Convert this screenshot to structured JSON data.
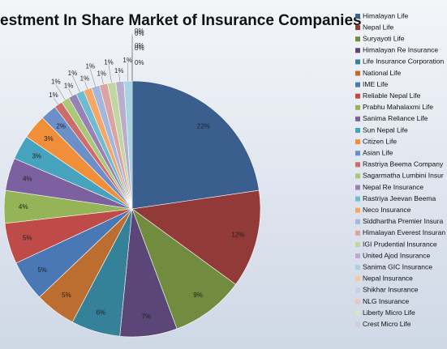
{
  "chart_data": {
    "type": "pie",
    "title": "estment In Share Market of Insurance Companies",
    "categories": [
      "Himalayan Life",
      "Nepal Life",
      "Suryayoti Life",
      "Himalayan Re Insurance",
      "Life Insurance Corporation",
      "National Life",
      "IME Life",
      "Reliable Nepal Life",
      "Prabhu Mahalaxmi Life",
      "Sanima Reliance Life",
      "Sun Nepal Life",
      "Citizen Life",
      "Asian Life",
      "Rastriya Beema Company",
      "Sagarmatha Lumbini Insur",
      "Nepal Re Insurance",
      "Rastriya Jeevan Beema",
      "Neco Insurance",
      "Siddhartha Premier Insura",
      "Himalayan Everest Insuran",
      "IGI Prudential Insurance",
      "United Ajod Insurance",
      "Sanima GIC Insurance",
      "Nepal Insurance",
      "Shikhar Insurance",
      "NLG Insurance",
      "Liberty Micro Life",
      "Crest Micro Life"
    ],
    "values": [
      22,
      12,
      9,
      7,
      6,
      5,
      5,
      5,
      4,
      4,
      3,
      3,
      2,
      1,
      1,
      1,
      1,
      1,
      1,
      1,
      1,
      1,
      1,
      0,
      0,
      0,
      0,
      0
    ],
    "value_labels": [
      "22%",
      "12%",
      "9%",
      "7%",
      "6%",
      "5%",
      "5%",
      "5%",
      "4%",
      "4%",
      "3%",
      "3%",
      "2%",
      "1%",
      "1%",
      "1%",
      "1%",
      "1%",
      "1%",
      "1%",
      "1%",
      "1%",
      "1%",
      "0%",
      "0%",
      "0%",
      "0%",
      "0%"
    ],
    "colors": [
      "#3a5f8e",
      "#913a38",
      "#718b3f",
      "#5b4777",
      "#35819a",
      "#bb6e2f",
      "#4a78b5",
      "#be4b48",
      "#94b457",
      "#7d60a0",
      "#46a3bd",
      "#f08e3a",
      "#6d8fc8",
      "#cd6d6b",
      "#abc778",
      "#9682b5",
      "#6fbbd0",
      "#f5a866",
      "#a3b6dc",
      "#dba3a2",
      "#c2d6a2",
      "#b9acce",
      "#a6d4e2",
      "#f9c69e",
      "#c5d1ea",
      "#e9c6c5",
      "#d9e6c8",
      "#d3cbe0"
    ]
  }
}
